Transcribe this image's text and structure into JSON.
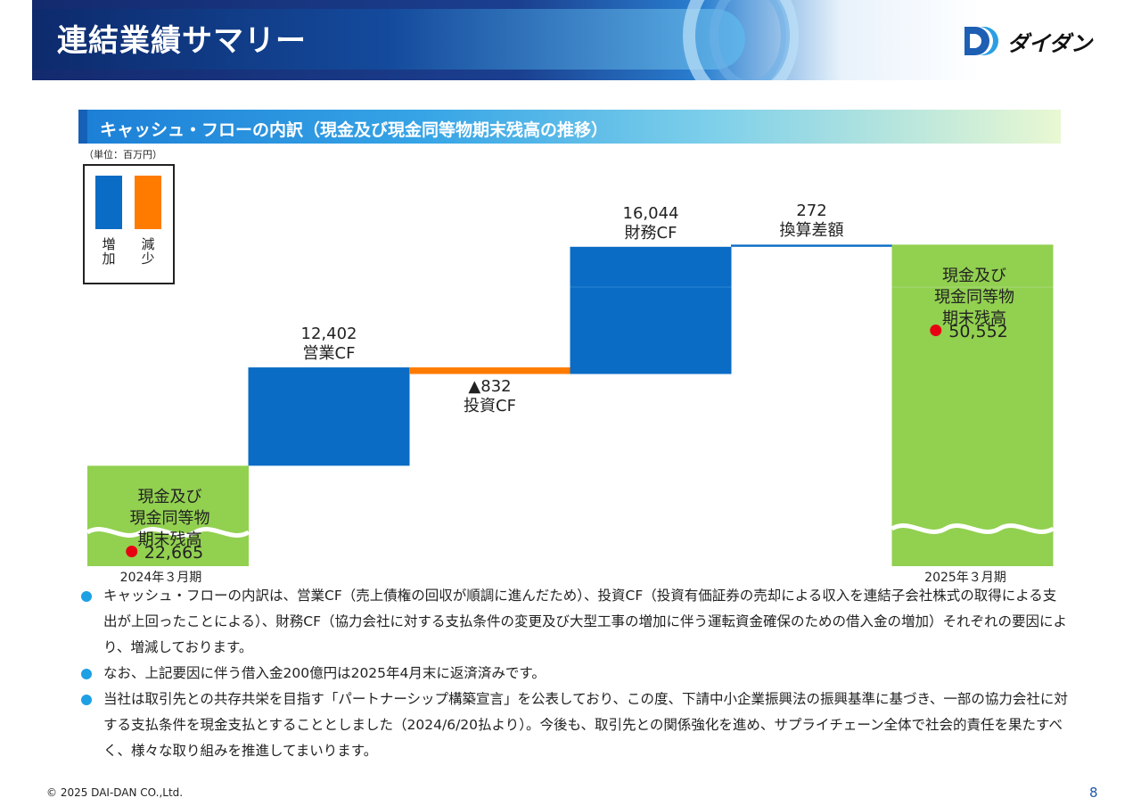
{
  "header": {
    "title": "連結業績サマリー",
    "logo_text": "ダイダン"
  },
  "section": {
    "title": "キャッシュ・フローの内訳（現金及び現金同等物期末残高の推移）"
  },
  "unit": "（単位：百万円）",
  "legend": [
    {
      "label": "増加",
      "color": "#0a6cc4"
    },
    {
      "label": "減少",
      "color": "#ff7b00"
    }
  ],
  "colors": {
    "increase": "#0a6cc4",
    "decrease": "#ff7b00",
    "balance": "#92d050",
    "highlight_dot": "#e60012",
    "accent": "#1ea0e4"
  },
  "chart_data": {
    "type": "waterfall",
    "unit": "百万円",
    "steps": [
      {
        "name": "現金及び現金同等物期末残高",
        "period": "2024年３月期",
        "value": 22665,
        "value_label": "22,665",
        "kind": "total"
      },
      {
        "name": "営業CF",
        "value": 12402,
        "value_label": "12,402",
        "kind": "increase"
      },
      {
        "name": "投資CF",
        "value": -832,
        "value_label": "▲832",
        "kind": "decrease"
      },
      {
        "name": "財務CF",
        "value": 16044,
        "value_label": "16,044",
        "kind": "increase"
      },
      {
        "name": "換算差額",
        "value": 272,
        "value_label": "272",
        "kind": "increase"
      },
      {
        "name": "現金及び現金同等物期末残高",
        "period": "2025年３月期",
        "value": 50552,
        "value_label": "50,552",
        "kind": "total"
      }
    ],
    "total_label_lines": [
      "現金及び",
      "現金同等物",
      "期末残高"
    ],
    "axis_break": true
  },
  "notes": [
    "キャッシュ・フローの内訳は、営業CF（売上債権の回収が順調に進んだため）、投資CF（投資有価証券の売却による収入を連結子会社株式の取得による支出が上回ったことによる）、財務CF（協力会社に対する支払条件の変更及び大型工事の増加に伴う運転資金確保のための借入金の増加）それぞれの要因により、増減しております。",
    "なお、上記要因に伴う借入金200億円は2025年4月末に返済済みです。",
    "当社は取引先との共存共栄を目指す「パートナーシップ構築宣言」を公表しており、この度、下請中小企業振興法の振興基準に基づき、一部の協力会社に対する支払条件を現金支払とすることとしました（2024/6/20払より）。今後も、取引先との関係強化を進め、サプライチェーン全体で社会的責任を果たすべく、様々な取り組みを推進してまいります。"
  ],
  "footer": {
    "copyright": "© 2025 DAI-DAN CO.,Ltd.",
    "page": "8"
  }
}
